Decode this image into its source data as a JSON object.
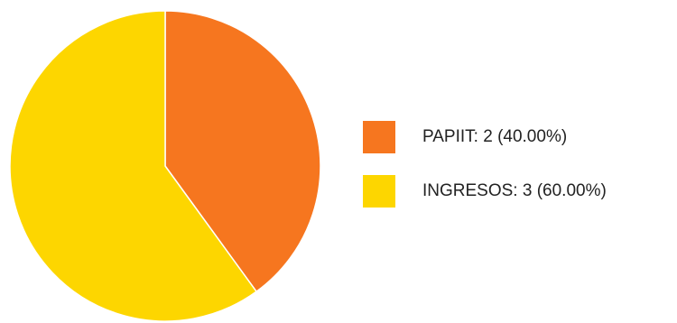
{
  "chart_data": {
    "type": "pie",
    "title": "",
    "slices": [
      {
        "name": "PAPIIT",
        "value": 2,
        "percent": "40.00%",
        "label": "PAPIIT: 2 (40.00%)",
        "color": "#F6761F"
      },
      {
        "name": "INGRESOS",
        "value": 3,
        "percent": "60.00%",
        "label": "INGRESOS: 3 (60.00%)",
        "color": "#FDD600"
      }
    ],
    "start_angle_deg": 0,
    "direction": "clockwise",
    "legend_position": "right"
  }
}
